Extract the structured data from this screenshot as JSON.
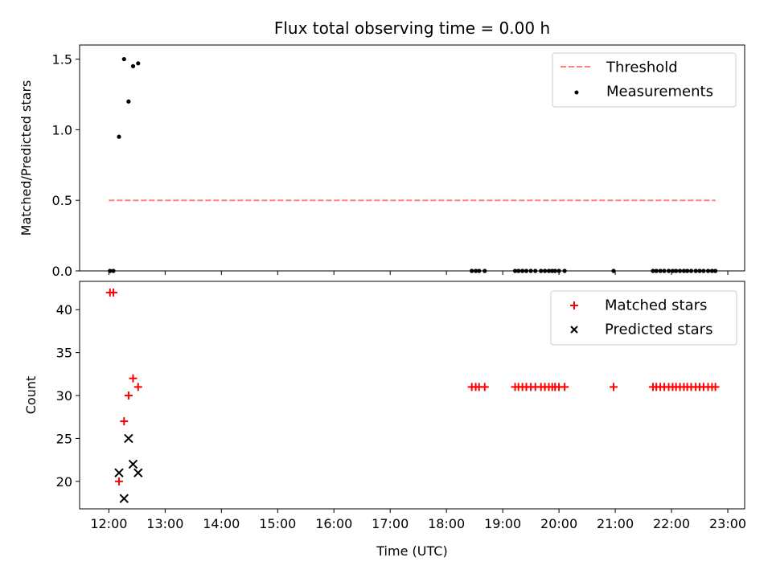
{
  "chart_data": {
    "title": "Flux total observing time = 0.00 h",
    "xlabel": "Time (UTC)",
    "x_ticks": [
      "12:00",
      "13:00",
      "14:00",
      "15:00",
      "16:00",
      "17:00",
      "18:00",
      "19:00",
      "20:00",
      "21:00",
      "22:00",
      "23:00"
    ],
    "xlim": [
      11.48,
      23.3
    ],
    "top": {
      "type": "scatter",
      "ylabel": "Matched/Predicted stars",
      "ylim": [
        0,
        1.6
      ],
      "y_ticks": [
        "0.0",
        "0.5",
        "1.0",
        "1.5"
      ],
      "legend": "top-right",
      "threshold": {
        "name": "Threshold",
        "value": 0.5,
        "x_start": 12.0,
        "x_end": 22.78,
        "color": "#ff7f7f"
      },
      "measurements": {
        "name": "Measurements",
        "color": "#000000",
        "x": [
          12.02,
          12.08,
          12.18,
          12.27,
          12.35,
          12.43,
          12.52,
          18.45,
          18.52,
          18.58,
          18.68,
          19.22,
          19.28,
          19.35,
          19.42,
          19.5,
          19.58,
          19.68,
          19.75,
          19.82,
          19.88,
          19.93,
          20.0,
          20.1,
          20.97,
          21.67,
          21.73,
          21.8,
          21.87,
          21.95,
          22.02,
          22.08,
          22.15,
          22.22,
          22.28,
          22.35,
          22.43,
          22.5,
          22.57,
          22.65,
          22.72,
          22.78
        ],
        "y": [
          0,
          0,
          0.95,
          1.5,
          1.2,
          1.45,
          1.47,
          0,
          0,
          0,
          0,
          0,
          0,
          0,
          0,
          0,
          0,
          0,
          0,
          0,
          0,
          0,
          0,
          0,
          0,
          0,
          0,
          0,
          0,
          0,
          0,
          0,
          0,
          0,
          0,
          0,
          0,
          0,
          0,
          0,
          0,
          0
        ]
      }
    },
    "bottom": {
      "type": "scatter",
      "ylabel": "Count",
      "ylim": [
        16.8,
        43.3
      ],
      "y_ticks": [
        "20",
        "25",
        "30",
        "35",
        "40"
      ],
      "legend": "top-right",
      "matched": {
        "name": "Matched stars",
        "color": "#ff0000",
        "x": [
          12.02,
          12.08,
          12.18,
          12.27,
          12.35,
          12.43,
          12.52,
          18.45,
          18.52,
          18.58,
          18.68,
          19.22,
          19.28,
          19.35,
          19.42,
          19.5,
          19.58,
          19.68,
          19.75,
          19.82,
          19.88,
          19.93,
          20.0,
          20.1,
          20.97,
          21.67,
          21.73,
          21.8,
          21.87,
          21.95,
          22.02,
          22.08,
          22.15,
          22.22,
          22.28,
          22.35,
          22.43,
          22.5,
          22.57,
          22.65,
          22.72,
          22.78
        ],
        "y": [
          42,
          42,
          20,
          27,
          30,
          32,
          31,
          31,
          31,
          31,
          31,
          31,
          31,
          31,
          31,
          31,
          31,
          31,
          31,
          31,
          31,
          31,
          31,
          31,
          31,
          31,
          31,
          31,
          31,
          31,
          31,
          31,
          31,
          31,
          31,
          31,
          31,
          31,
          31,
          31,
          31,
          31
        ]
      },
      "predicted": {
        "name": "Predicted stars",
        "color": "#000000",
        "x": [
          12.18,
          12.27,
          12.35,
          12.43,
          12.52
        ],
        "y": [
          21,
          18,
          25,
          22,
          21
        ]
      }
    }
  }
}
